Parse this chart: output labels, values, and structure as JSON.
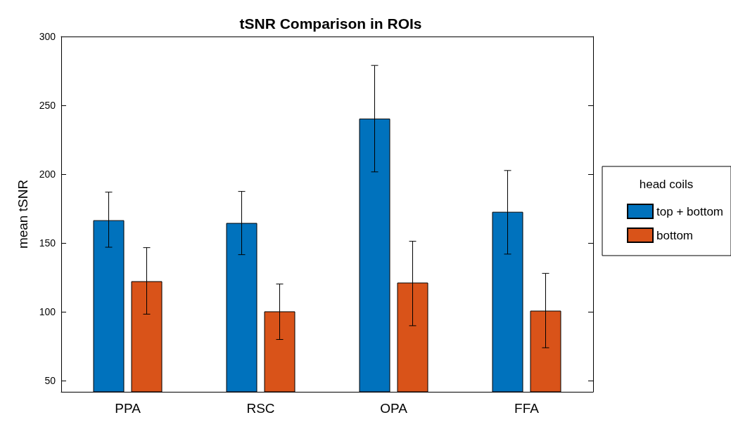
{
  "chart_data": {
    "type": "bar",
    "title": "tSNR Comparison in ROIs",
    "ylabel": "mean tSNR",
    "legend_title": "head coils",
    "categories": [
      "PPA",
      "RSC",
      "OPA",
      "FFA"
    ],
    "series": [
      {
        "name": "top + bottom",
        "color": "#0072bd",
        "values": [
          166.6,
          164.6,
          240.4,
          172.7
        ],
        "errors": [
          [
            147,
            187
          ],
          [
            141.6,
            187.5
          ],
          [
            201.7,
            279
          ],
          [
            142,
            202.7
          ]
        ]
      },
      {
        "name": "bottom",
        "color": "#d95319",
        "values": [
          122.3,
          100.4,
          121.3,
          100.9
        ],
        "errors": [
          [
            98.4,
            146.7
          ],
          [
            80,
            120.3
          ],
          [
            90,
            151.3
          ],
          [
            74,
            128
          ]
        ]
      }
    ],
    "ylim": [
      42,
      300
    ],
    "yticks": [
      50,
      100,
      150,
      200,
      250,
      300
    ],
    "grid": false,
    "legend": "right"
  }
}
